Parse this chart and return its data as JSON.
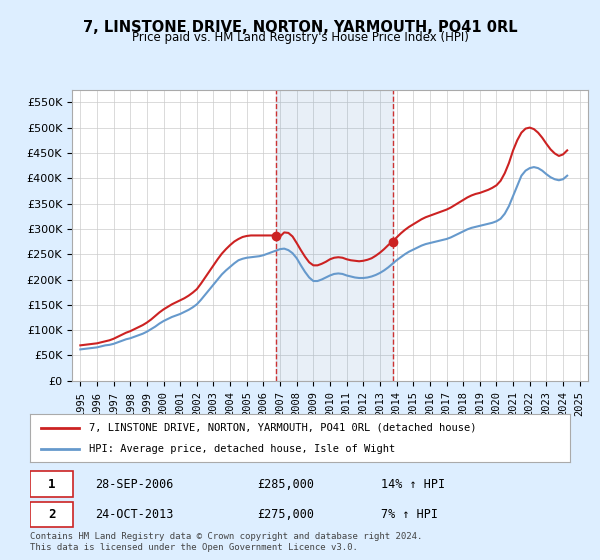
{
  "title": "7, LINSTONE DRIVE, NORTON, YARMOUTH, PO41 0RL",
  "subtitle": "Price paid vs. HM Land Registry's House Price Index (HPI)",
  "legend_line1": "7, LINSTONE DRIVE, NORTON, YARMOUTH, PO41 0RL (detached house)",
  "legend_line2": "HPI: Average price, detached house, Isle of Wight",
  "footnote": "Contains HM Land Registry data © Crown copyright and database right 2024.\nThis data is licensed under the Open Government Licence v3.0.",
  "transaction1_label": "1",
  "transaction1_date": "28-SEP-2006",
  "transaction1_price": "£285,000",
  "transaction1_hpi": "14% ↑ HPI",
  "transaction2_label": "2",
  "transaction2_date": "24-OCT-2013",
  "transaction2_price": "£275,000",
  "transaction2_hpi": "7% ↑ HPI",
  "vline1_x": 2006.75,
  "vline2_x": 2013.8,
  "marker1_y": 285000,
  "marker2_y": 275000,
  "ylim": [
    0,
    575000
  ],
  "xlim_start": 1994.5,
  "xlim_end": 2025.5,
  "yticks": [
    0,
    50000,
    100000,
    150000,
    200000,
    250000,
    300000,
    350000,
    400000,
    450000,
    500000,
    550000
  ],
  "hpi_color": "#6699cc",
  "price_color": "#cc2222",
  "vline_color": "#cc3333",
  "background_color": "#ddeeff",
  "plot_bg": "#ffffff",
  "grid_color": "#cccccc",
  "hpi_data_x": [
    1995,
    1995.25,
    1995.5,
    1995.75,
    1996,
    1996.25,
    1996.5,
    1996.75,
    1997,
    1997.25,
    1997.5,
    1997.75,
    1998,
    1998.25,
    1998.5,
    1998.75,
    1999,
    1999.25,
    1999.5,
    1999.75,
    2000,
    2000.25,
    2000.5,
    2000.75,
    2001,
    2001.25,
    2001.5,
    2001.75,
    2002,
    2002.25,
    2002.5,
    2002.75,
    2003,
    2003.25,
    2003.5,
    2003.75,
    2004,
    2004.25,
    2004.5,
    2004.75,
    2005,
    2005.25,
    2005.5,
    2005.75,
    2006,
    2006.25,
    2006.5,
    2006.75,
    2007,
    2007.25,
    2007.5,
    2007.75,
    2008,
    2008.25,
    2008.5,
    2008.75,
    2009,
    2009.25,
    2009.5,
    2009.75,
    2010,
    2010.25,
    2010.5,
    2010.75,
    2011,
    2011.25,
    2011.5,
    2011.75,
    2012,
    2012.25,
    2012.5,
    2012.75,
    2013,
    2013.25,
    2013.5,
    2013.75,
    2014,
    2014.25,
    2014.5,
    2014.75,
    2015,
    2015.25,
    2015.5,
    2015.75,
    2016,
    2016.25,
    2016.5,
    2016.75,
    2017,
    2017.25,
    2017.5,
    2017.75,
    2018,
    2018.25,
    2018.5,
    2018.75,
    2019,
    2019.25,
    2019.5,
    2019.75,
    2020,
    2020.25,
    2020.5,
    2020.75,
    2021,
    2021.25,
    2021.5,
    2021.75,
    2022,
    2022.25,
    2022.5,
    2022.75,
    2023,
    2023.25,
    2023.5,
    2023.75,
    2024,
    2024.25
  ],
  "hpi_data_y": [
    62000,
    63000,
    64000,
    65000,
    66000,
    68000,
    70000,
    71000,
    73000,
    76000,
    79000,
    82000,
    84000,
    87000,
    90000,
    93000,
    97000,
    102000,
    107000,
    113000,
    118000,
    122000,
    126000,
    129000,
    132000,
    136000,
    140000,
    145000,
    151000,
    160000,
    170000,
    180000,
    190000,
    200000,
    210000,
    218000,
    225000,
    232000,
    238000,
    241000,
    243000,
    244000,
    245000,
    246000,
    248000,
    251000,
    254000,
    257000,
    260000,
    261000,
    258000,
    252000,
    242000,
    228000,
    215000,
    204000,
    197000,
    197000,
    200000,
    204000,
    208000,
    211000,
    212000,
    211000,
    208000,
    206000,
    204000,
    203000,
    203000,
    204000,
    206000,
    209000,
    213000,
    218000,
    224000,
    231000,
    238000,
    244000,
    250000,
    255000,
    259000,
    263000,
    267000,
    270000,
    272000,
    274000,
    276000,
    278000,
    280000,
    283000,
    287000,
    291000,
    295000,
    299000,
    302000,
    304000,
    306000,
    308000,
    310000,
    312000,
    315000,
    320000,
    330000,
    345000,
    365000,
    385000,
    405000,
    415000,
    420000,
    422000,
    420000,
    415000,
    408000,
    402000,
    398000,
    396000,
    398000,
    405000
  ],
  "price_data_x": [
    1995,
    1995.25,
    1995.5,
    1995.75,
    1996,
    1996.25,
    1996.5,
    1996.75,
    1997,
    1997.25,
    1997.5,
    1997.75,
    1998,
    1998.25,
    1998.5,
    1998.75,
    1999,
    1999.25,
    1999.5,
    1999.75,
    2000,
    2000.25,
    2000.5,
    2000.75,
    2001,
    2001.25,
    2001.5,
    2001.75,
    2002,
    2002.25,
    2002.5,
    2002.75,
    2003,
    2003.25,
    2003.5,
    2003.75,
    2004,
    2004.25,
    2004.5,
    2004.75,
    2005,
    2005.25,
    2005.5,
    2005.75,
    2006,
    2006.25,
    2006.5,
    2006.75,
    2007,
    2007.25,
    2007.5,
    2007.75,
    2008,
    2008.25,
    2008.5,
    2008.75,
    2009,
    2009.25,
    2009.5,
    2009.75,
    2010,
    2010.25,
    2010.5,
    2010.75,
    2011,
    2011.25,
    2011.5,
    2011.75,
    2012,
    2012.25,
    2012.5,
    2012.75,
    2013,
    2013.25,
    2013.5,
    2013.75,
    2014,
    2014.25,
    2014.5,
    2014.75,
    2015,
    2015.25,
    2015.5,
    2015.75,
    2016,
    2016.25,
    2016.5,
    2016.75,
    2017,
    2017.25,
    2017.5,
    2017.75,
    2018,
    2018.25,
    2018.5,
    2018.75,
    2019,
    2019.25,
    2019.5,
    2019.75,
    2020,
    2020.25,
    2020.5,
    2020.75,
    2021,
    2021.25,
    2021.5,
    2021.75,
    2022,
    2022.25,
    2022.5,
    2022.75,
    2023,
    2023.25,
    2023.5,
    2023.75,
    2024,
    2024.25
  ],
  "price_data_y": [
    70000,
    71000,
    72000,
    73000,
    74000,
    76000,
    78000,
    80000,
    83000,
    87000,
    91000,
    95000,
    98000,
    102000,
    106000,
    110000,
    115000,
    121000,
    128000,
    135000,
    141000,
    146000,
    151000,
    155000,
    159000,
    163000,
    168000,
    174000,
    181000,
    192000,
    204000,
    216000,
    228000,
    240000,
    251000,
    260000,
    268000,
    275000,
    280000,
    284000,
    286000,
    287000,
    287000,
    287000,
    287000,
    287000,
    287000,
    285000,
    285000,
    293000,
    292000,
    285000,
    272000,
    258000,
    245000,
    234000,
    228000,
    228000,
    231000,
    235000,
    240000,
    243000,
    244000,
    243000,
    240000,
    238000,
    237000,
    236000,
    237000,
    239000,
    242000,
    247000,
    253000,
    260000,
    268000,
    275000,
    283000,
    291000,
    298000,
    304000,
    309000,
    314000,
    319000,
    323000,
    326000,
    329000,
    332000,
    335000,
    338000,
    342000,
    347000,
    352000,
    357000,
    362000,
    366000,
    369000,
    371000,
    374000,
    377000,
    381000,
    386000,
    395000,
    410000,
    430000,
    455000,
    475000,
    490000,
    498000,
    500000,
    497000,
    490000,
    480000,
    468000,
    457000,
    449000,
    444000,
    447000,
    455000
  ],
  "xticks": [
    1995,
    1996,
    1997,
    1998,
    1999,
    2000,
    2001,
    2002,
    2003,
    2004,
    2005,
    2006,
    2007,
    2008,
    2009,
    2010,
    2011,
    2012,
    2013,
    2014,
    2015,
    2016,
    2017,
    2018,
    2019,
    2020,
    2021,
    2022,
    2023,
    2024,
    2025
  ]
}
